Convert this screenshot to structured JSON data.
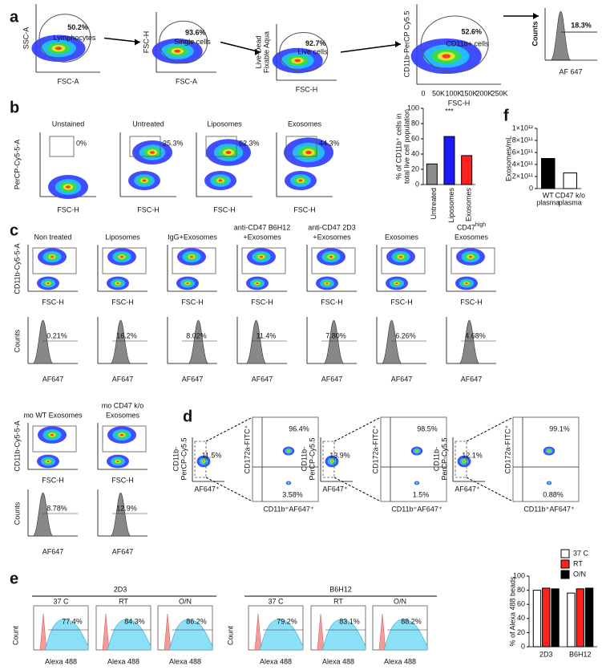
{
  "a": {
    "label": "a",
    "plots": [
      {
        "y_label": [
          "SSC-A"
        ],
        "x_label": "FSC-A",
        "gate_value": "50.2%",
        "gate_name": "Lymphocytes"
      },
      {
        "y_label": [
          "FSC-H"
        ],
        "x_label": "FSC-A",
        "gate_value": "93.6%",
        "gate_name": "Single cells"
      },
      {
        "y_label": [
          "Live-Dead",
          "Fixable Aqua"
        ],
        "x_label": "FSC-H",
        "gate_value": "92.7%",
        "gate_name": "Live cells"
      },
      {
        "y_label": [
          "CD11b-PerCP Cy5.5"
        ],
        "x_label": "FSC-H",
        "gate_value": "52.6%",
        "gate_name": "CD11b+ cells"
      }
    ],
    "histogram": {
      "y_label": "Counts",
      "x_label": "AF 647",
      "gate_value": "18.3%"
    },
    "x_ticks": [
      "0",
      "50K",
      "100K",
      "150K",
      "200K",
      "250K"
    ]
  },
  "b": {
    "label": "b",
    "y_label": "PerCP-Cy5-5-A",
    "x_label": "FSC-H",
    "plots": [
      {
        "title": "Unstained",
        "gate_value": "0%"
      },
      {
        "title": "Untreated",
        "gate_value": "25.3%"
      },
      {
        "title": "Liposomes",
        "gate_value": "62.3%"
      },
      {
        "title": "Exosomes",
        "gate_value": "44.3%"
      }
    ],
    "bar_chart": {
      "y_label": [
        "% of CD11b⁺ cells in",
        "total live cell population"
      ],
      "categories": [
        "Untreated",
        "Liposomes",
        "Exosomes"
      ],
      "values": [
        27,
        63,
        38
      ],
      "colors": [
        "#8c8c8c",
        "#1a1aff",
        "#ff2020"
      ],
      "ylim": [
        0,
        100
      ],
      "yticks": [
        0,
        20,
        40,
        60,
        80,
        100
      ],
      "annotation": "***"
    }
  },
  "f": {
    "label": "f",
    "bar_chart": {
      "y_label": [
        "Exosomes/mL"
      ],
      "categories": [
        [
          "WT",
          "plasma"
        ],
        [
          "CD47 k/o",
          "plasma"
        ]
      ],
      "values": [
        500000000000,
        260000000000
      ],
      "colors": [
        "#000000",
        "#ffffff"
      ],
      "ylim": [
        0,
        1000000000000
      ],
      "yticks": [
        0,
        {
          "value": 200000000000,
          "label": "2×10¹¹"
        },
        {
          "value": 400000000000,
          "label": "4×10¹¹"
        },
        {
          "value": 600000000000,
          "label": "6×10¹¹"
        },
        {
          "value": 800000000000,
          "label": "8×10¹¹"
        },
        {
          "value": 1000000000000,
          "label": "1×10¹²"
        }
      ]
    }
  },
  "c": {
    "label": "c",
    "scatter_y_label": "CD11b-Cy5-5-A",
    "scatter_x_label": "FSC-H",
    "hist_y_label": "Counts",
    "hist_x_label": "AF647",
    "plots": [
      {
        "title": [
          "Non treated"
        ],
        "hist_value": "0.21%"
      },
      {
        "title": [
          "Liposomes"
        ],
        "hist_value": "16.2%"
      },
      {
        "title": [
          "IgG+Exosomes"
        ],
        "hist_value": "8.02%"
      },
      {
        "title": [
          "anti-CD47 B6H12",
          "+Exosomes"
        ],
        "hist_value": "11.4%"
      },
      {
        "title": [
          "anti-CD47 2D3",
          "+Exosomes"
        ],
        "hist_value": "7.80%"
      },
      {
        "title": [
          "Exosomes"
        ],
        "hist_value": "6.26%"
      },
      {
        "title": [
          "CD47",
          "Exosomes"
        ],
        "title_sup": "high",
        "hist_value": "4.68%"
      }
    ],
    "plots2": [
      {
        "title": [
          "mo WT Exosomes"
        ],
        "hist_value": "8.78%"
      },
      {
        "title": [
          "mo CD47 k/o",
          "Exosomes"
        ],
        "hist_value": "12.9%"
      }
    ]
  },
  "d": {
    "label": "d",
    "y_label": [
      "CD11b-",
      "PerCP-Cy5.5"
    ],
    "x_label": "AF647⁺",
    "zoom_y_label": "CD172a-FITC⁺",
    "zoom_x_label": "CD11b⁺AF647⁺",
    "plots": [
      {
        "gate_value": "11.5%",
        "upper": "96.4%",
        "lower": "3.58%"
      },
      {
        "gate_value": "13.9%",
        "upper": "98.5%",
        "lower": "1.5%"
      },
      {
        "gate_value": "12.1%",
        "upper": "99.1%",
        "lower": "0.88%"
      }
    ]
  },
  "e": {
    "label": "e",
    "y_label": "Count",
    "x_label": "Alexa 488",
    "groups": [
      {
        "name": "2D3",
        "plots": [
          {
            "title": "37 C",
            "value": "77.4%"
          },
          {
            "title": "RT",
            "value": "84.3%"
          },
          {
            "title": "O/N",
            "value": "86.2%"
          }
        ]
      },
      {
        "name": "B6H12",
        "plots": [
          {
            "title": "37 C",
            "value": "79.2%"
          },
          {
            "title": "RT",
            "value": "83.1%"
          },
          {
            "title": "O/N",
            "value": "88.2%"
          }
        ]
      }
    ],
    "bar_chart": {
      "y_label": [
        "% of Alexa 488 beads"
      ],
      "categories": [
        "2D3",
        "B6H12"
      ],
      "ylim": [
        0,
        100
      ],
      "yticks": [
        0,
        20,
        40,
        60,
        80,
        100
      ],
      "series": [
        {
          "name": "37 C",
          "color": "#ffffff",
          "values": [
            80,
            76
          ]
        },
        {
          "name": "RT",
          "color": "#ff2020",
          "values": [
            83,
            82
          ]
        },
        {
          "name": "O/N",
          "color": "#000000",
          "values": [
            82,
            83
          ]
        }
      ]
    }
  }
}
